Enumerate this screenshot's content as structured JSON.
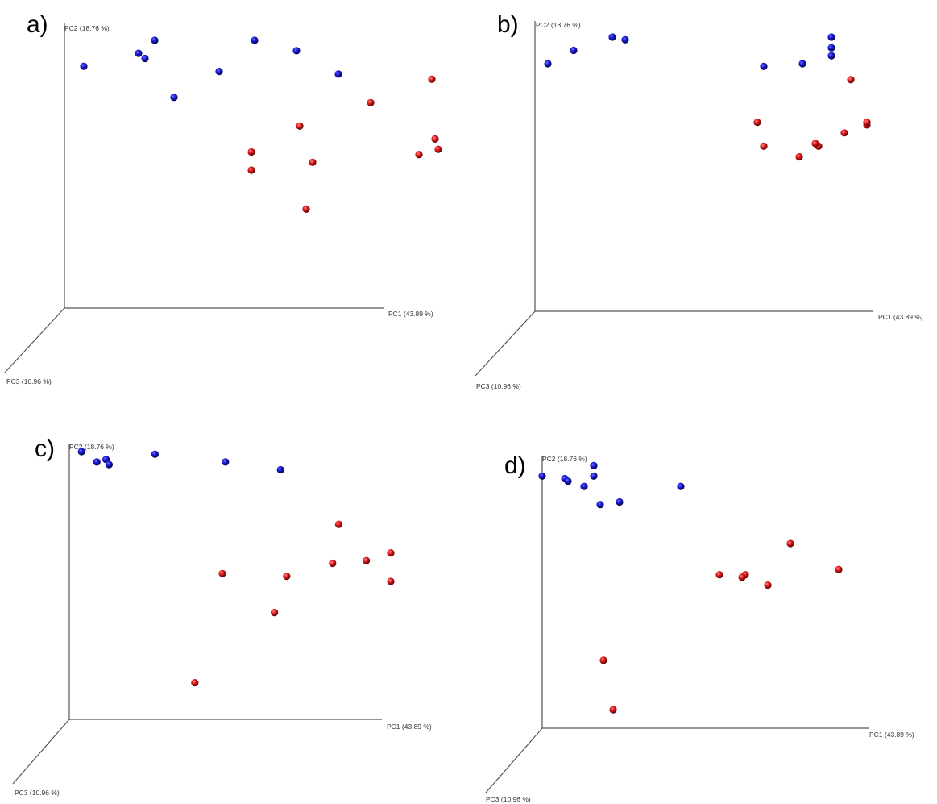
{
  "colors": {
    "group_blue": "#1515cc",
    "group_red": "#dd1515",
    "axis": "#555555"
  },
  "chart_data": [
    {
      "type": "scatter",
      "projection": "3d",
      "panel_label": "a)",
      "axes": {
        "x": "PC1 (43.89 %)",
        "y": "PC2 (18.76 %)",
        "z": "PC3 (10.96 %)"
      },
      "series": [
        {
          "color": "blue",
          "points": [
            [
              0.06,
              0.9
            ],
            [
              0.23,
              0.95
            ],
            [
              0.28,
              1.0
            ],
            [
              0.25,
              0.93
            ],
            [
              0.34,
              0.78
            ],
            [
              0.48,
              0.88
            ],
            [
              0.59,
              1.0
            ],
            [
              0.72,
              0.96
            ],
            [
              0.85,
              0.87
            ]
          ]
        },
        {
          "color": "red",
          "points": [
            [
              1.14,
              0.85
            ],
            [
              0.95,
              0.76
            ],
            [
              0.73,
              0.67
            ],
            [
              0.58,
              0.57
            ],
            [
              0.58,
              0.5
            ],
            [
              0.77,
              0.53
            ],
            [
              1.15,
              0.62
            ],
            [
              1.16,
              0.58
            ],
            [
              1.1,
              0.56
            ],
            [
              0.75,
              0.35
            ]
          ]
        }
      ]
    },
    {
      "type": "scatter",
      "projection": "3d",
      "panel_label": "b)",
      "axes": {
        "x": "PC1 (43.89 %)",
        "y": "PC2 (18.76 %)",
        "z": "PC3 (10.96 %)"
      },
      "series": [
        {
          "color": "blue",
          "points": [
            [
              0.04,
              0.9
            ],
            [
              0.12,
              0.95
            ],
            [
              0.24,
              1.0
            ],
            [
              0.28,
              0.99
            ],
            [
              0.71,
              0.89
            ],
            [
              0.83,
              0.9
            ],
            [
              0.92,
              1.0
            ],
            [
              0.92,
              0.96
            ],
            [
              0.92,
              0.93
            ]
          ]
        },
        {
          "color": "red",
          "points": [
            [
              0.98,
              0.84
            ],
            [
              0.69,
              0.68
            ],
            [
              0.71,
              0.59
            ],
            [
              0.82,
              0.55
            ],
            [
              0.88,
              0.59
            ],
            [
              0.87,
              0.6
            ],
            [
              0.96,
              0.64
            ],
            [
              1.03,
              0.67
            ],
            [
              1.03,
              0.68
            ]
          ]
        }
      ]
    },
    {
      "type": "scatter",
      "projection": "3d",
      "panel_label": "c)",
      "axes": {
        "x": "PC1 (43.89 %)",
        "y": "PC2 (18.76 %)",
        "z": "PC3 (10.96 %)"
      },
      "series": [
        {
          "color": "blue",
          "points": [
            [
              0.04,
              1.0
            ],
            [
              0.09,
              0.96
            ],
            [
              0.12,
              0.97
            ],
            [
              0.13,
              0.95
            ],
            [
              0.28,
              0.99
            ],
            [
              0.51,
              0.96
            ],
            [
              0.69,
              0.93
            ]
          ]
        },
        {
          "color": "red",
          "points": [
            [
              0.88,
              0.72
            ],
            [
              1.05,
              0.61
            ],
            [
              0.97,
              0.58
            ],
            [
              1.05,
              0.5
            ],
            [
              0.86,
              0.57
            ],
            [
              0.71,
              0.52
            ],
            [
              0.5,
              0.53
            ],
            [
              0.67,
              0.38
            ],
            [
              0.41,
              0.11
            ]
          ]
        }
      ]
    },
    {
      "type": "scatter",
      "projection": "3d",
      "panel_label": "d)",
      "axes": {
        "x": "PC1 (43.89 %)",
        "y": "PC2 (18.76 %)",
        "z": "PC3 (10.96 %)"
      },
      "series": [
        {
          "color": "blue",
          "points": [
            [
              0.0,
              0.94
            ],
            [
              0.07,
              0.93
            ],
            [
              0.08,
              0.92
            ],
            [
              0.13,
              0.9
            ],
            [
              0.16,
              0.98
            ],
            [
              0.16,
              0.94
            ],
            [
              0.18,
              0.83
            ],
            [
              0.24,
              0.84
            ],
            [
              0.43,
              0.9
            ]
          ]
        },
        {
          "color": "red",
          "points": [
            [
              0.77,
              0.68
            ],
            [
              0.92,
              0.58
            ],
            [
              0.55,
              0.56
            ],
            [
              0.63,
              0.56
            ],
            [
              0.62,
              0.55
            ],
            [
              0.7,
              0.52
            ],
            [
              0.19,
              0.23
            ],
            [
              0.22,
              0.04
            ]
          ]
        }
      ]
    }
  ]
}
